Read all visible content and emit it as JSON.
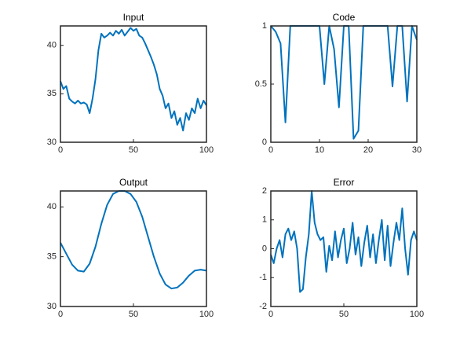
{
  "chart_data": [
    {
      "type": "line",
      "title": "Input",
      "color": "#0072bd",
      "x": [
        0,
        2,
        4,
        6,
        8,
        10,
        12,
        14,
        16,
        18,
        20,
        22,
        24,
        26,
        28,
        30,
        32,
        34,
        36,
        38,
        40,
        42,
        44,
        46,
        48,
        50,
        52,
        54,
        56,
        58,
        60,
        62,
        64,
        66,
        68,
        70,
        72,
        74,
        76,
        78,
        80,
        82,
        84,
        86,
        88,
        90,
        92,
        94,
        96,
        98,
        100
      ],
      "values": [
        36.3,
        35.5,
        35.8,
        34.5,
        34.2,
        34.0,
        34.3,
        34.0,
        34.1,
        33.9,
        33.0,
        34.5,
        36.5,
        39.5,
        41.2,
        40.8,
        41.0,
        41.3,
        41.0,
        41.5,
        41.2,
        41.6,
        41.0,
        41.4,
        41.8,
        41.5,
        41.7,
        41.0,
        40.8,
        40.2,
        39.5,
        38.8,
        38.0,
        37.0,
        35.5,
        34.8,
        33.5,
        34.0,
        32.5,
        33.2,
        31.8,
        32.5,
        31.2,
        33.0,
        32.3,
        33.5,
        33.0,
        34.5,
        33.5,
        34.3,
        33.8
      ],
      "xlim": [
        0,
        100
      ],
      "ylim": [
        30,
        42
      ],
      "xticks": [
        0,
        50,
        100
      ],
      "yticks": [
        30,
        35,
        40
      ]
    },
    {
      "type": "line",
      "title": "Code",
      "color": "#0072bd",
      "x": [
        0,
        1,
        2,
        3,
        4,
        5,
        6,
        7,
        8,
        9,
        10,
        11,
        12,
        13,
        14,
        15,
        16,
        17,
        18,
        19,
        20,
        21,
        22,
        23,
        24,
        25,
        26,
        27,
        28,
        29,
        30
      ],
      "values": [
        1,
        0.95,
        0.85,
        0.17,
        1,
        1,
        1,
        1,
        1,
        1,
        1,
        0.5,
        1,
        0.8,
        0.3,
        1,
        1,
        0.03,
        0.1,
        1,
        1,
        1,
        1,
        1,
        1,
        0.48,
        1,
        1,
        0.35,
        1,
        0.88
      ],
      "xlim": [
        0,
        30
      ],
      "ylim": [
        0,
        1
      ],
      "xticks": [
        0,
        10,
        20,
        30
      ],
      "yticks": [
        0,
        0.5,
        1
      ]
    },
    {
      "type": "line",
      "title": "Output",
      "color": "#0072bd",
      "x": [
        0,
        4,
        8,
        12,
        16,
        20,
        24,
        28,
        32,
        36,
        40,
        44,
        48,
        52,
        56,
        60,
        64,
        68,
        72,
        76,
        80,
        84,
        88,
        92,
        96,
        100
      ],
      "values": [
        36.4,
        35.3,
        34.2,
        33.6,
        33.5,
        34.3,
        36.0,
        38.3,
        40.2,
        41.3,
        41.6,
        41.6,
        41.3,
        40.5,
        39.0,
        37.0,
        35.0,
        33.3,
        32.2,
        31.8,
        31.9,
        32.4,
        33.1,
        33.6,
        33.7,
        33.6
      ],
      "xlim": [
        0,
        100
      ],
      "ylim": [
        30,
        41.6
      ],
      "xticks": [
        0,
        50,
        100
      ],
      "yticks": [
        30,
        35,
        40
      ]
    },
    {
      "type": "line",
      "title": "Error",
      "color": "#0072bd",
      "x": [
        0,
        2,
        4,
        6,
        8,
        10,
        12,
        14,
        16,
        18,
        20,
        22,
        24,
        26,
        28,
        30,
        32,
        34,
        36,
        38,
        40,
        42,
        44,
        46,
        48,
        50,
        52,
        54,
        56,
        58,
        60,
        62,
        64,
        66,
        68,
        70,
        72,
        74,
        76,
        78,
        80,
        82,
        84,
        86,
        88,
        90,
        92,
        94,
        96,
        98,
        100
      ],
      "values": [
        -0.2,
        -0.5,
        0.0,
        0.3,
        -0.3,
        0.5,
        0.7,
        0.3,
        0.6,
        0.0,
        -1.5,
        -1.4,
        -0.3,
        0.5,
        2.0,
        0.9,
        0.5,
        0.3,
        0.4,
        -0.8,
        0.1,
        -0.4,
        0.6,
        -0.3,
        0.3,
        0.7,
        -0.5,
        0.0,
        0.9,
        -0.2,
        0.4,
        -0.6,
        0.2,
        0.8,
        -0.3,
        0.5,
        -0.5,
        0.3,
        1.0,
        -0.4,
        0.8,
        -0.6,
        0.2,
        0.9,
        0.3,
        1.4,
        0.0,
        -0.9,
        0.3,
        0.6,
        0.3
      ],
      "xlim": [
        0,
        100
      ],
      "ylim": [
        -2,
        2
      ],
      "xticks": [
        0,
        50,
        100
      ],
      "yticks": [
        -2,
        -1,
        0,
        1,
        2
      ]
    }
  ]
}
